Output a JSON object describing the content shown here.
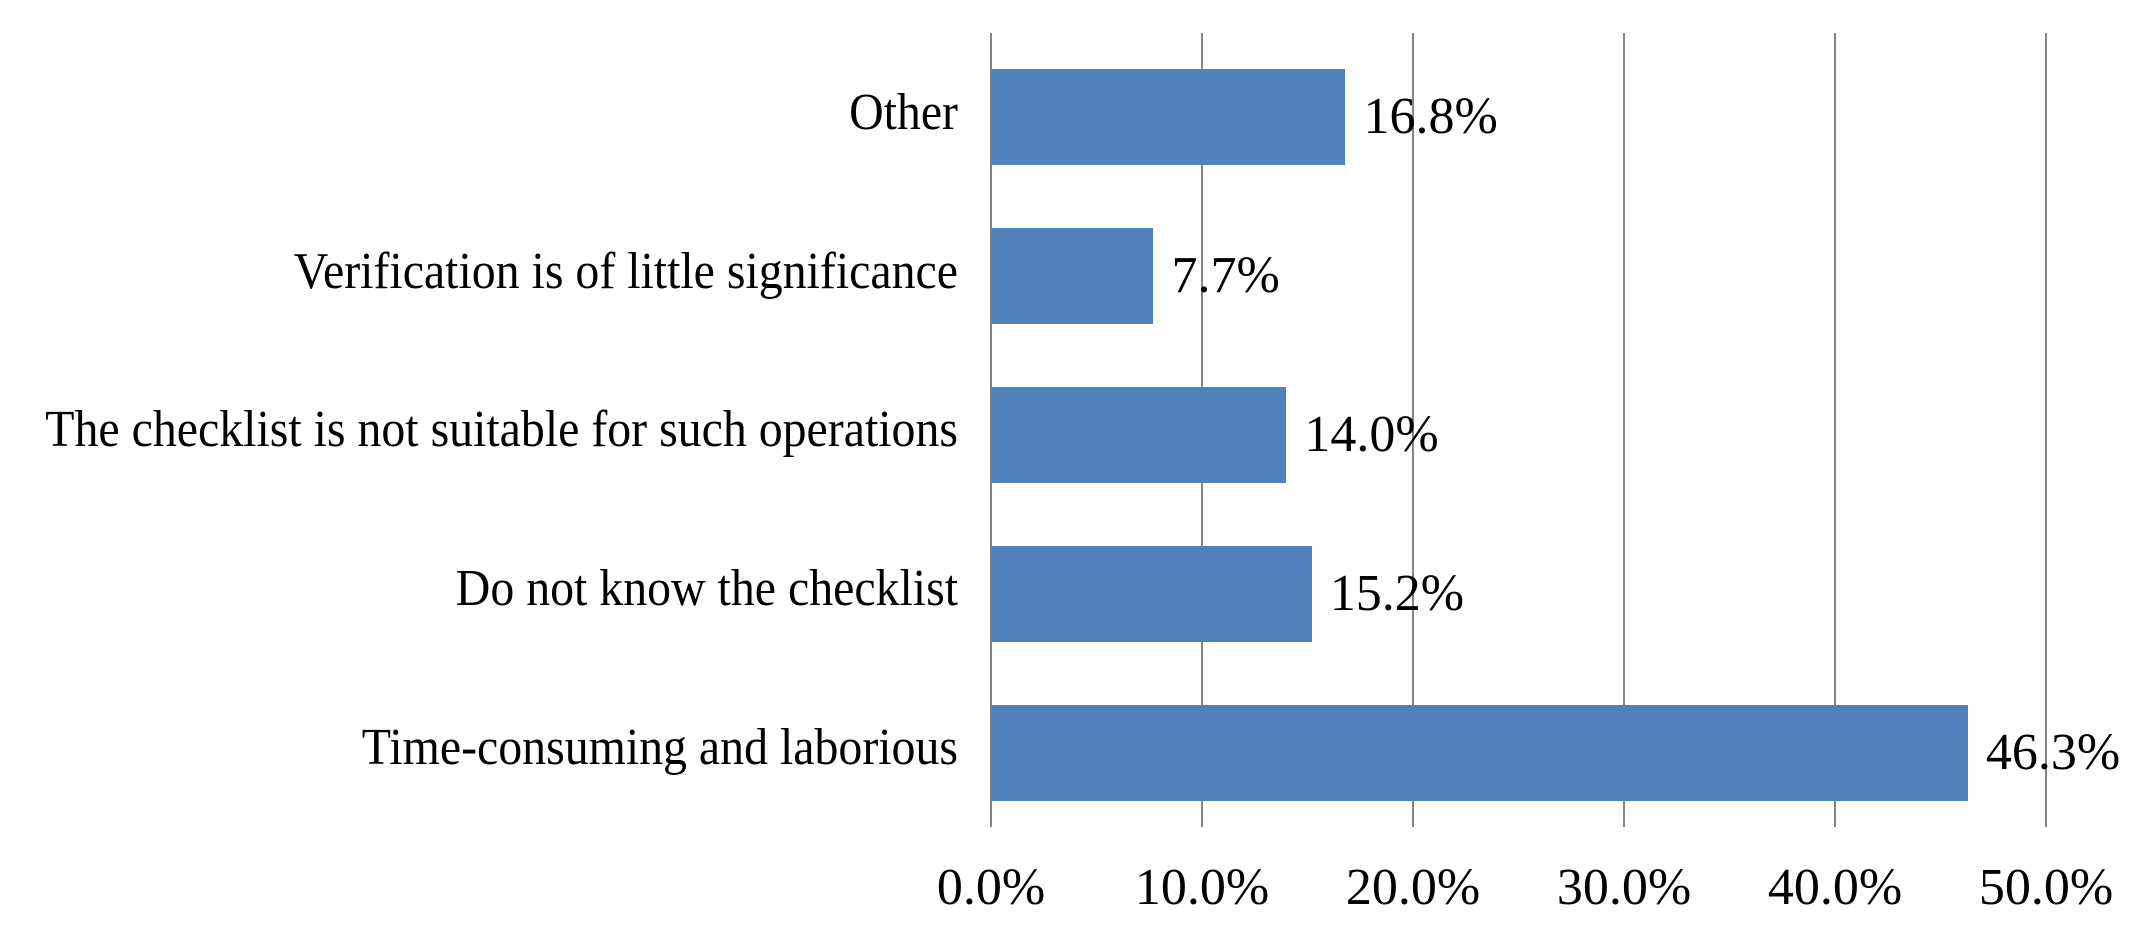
{
  "chart_data": {
    "type": "bar",
    "orientation": "horizontal",
    "title": "",
    "categories": [
      "Other",
      "Verification is of little significance",
      "The checklist is not suitable for such operations",
      "Do not know the checklist",
      "Time-consuming and laborious"
    ],
    "values": [
      16.8,
      7.7,
      14.0,
      15.2,
      46.3
    ],
    "value_labels": [
      "16.8%",
      "7.7%",
      "14.0%",
      "15.2%",
      "46.3%"
    ],
    "xlim": [
      0,
      50
    ],
    "x_ticks": [
      0,
      10,
      20,
      30,
      40,
      50
    ],
    "x_tick_labels": [
      "0.0%",
      "10.0%",
      "20.0%",
      "30.0%",
      "40.0%",
      "50.0%"
    ],
    "grid": "vertical-gridlines-on",
    "legend": "none",
    "xlabel": "",
    "ylabel": "",
    "colors": {
      "bar_fill": "#4F81BD",
      "gridline": "#848484",
      "text": "#000000",
      "background": "#FFFFFF"
    }
  }
}
